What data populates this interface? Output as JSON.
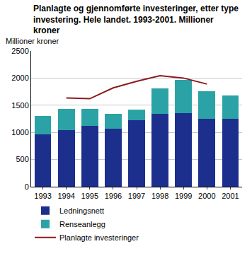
{
  "chart_data": {
    "type": "bar",
    "title": "Planlagte og gjennomførte investeringer, etter type investering. Hele landet. 1993-2001. Millioner kroner",
    "y_label": "Millioner kroner",
    "categories": [
      "1993",
      "1994",
      "1995",
      "1996",
      "1997",
      "1998",
      "1999",
      "2000",
      "2001"
    ],
    "stacked": true,
    "series": [
      {
        "name": "Ledningsnett",
        "type": "bar",
        "color": "#1c2f8c",
        "values": [
          970,
          1045,
          1120,
          1065,
          1230,
          1340,
          1360,
          1255,
          1245
        ]
      },
      {
        "name": "Renseanlegg",
        "type": "bar",
        "color": "#2ba3a6",
        "values": [
          335,
          390,
          310,
          280,
          195,
          470,
          600,
          500,
          440
        ]
      },
      {
        "name": "Planlagte investeringer",
        "type": "line",
        "color": "#8c1c1c",
        "values": [
          null,
          1635,
          1620,
          1820,
          1940,
          2045,
          2000,
          1890,
          null
        ]
      }
    ],
    "ylim": [
      0,
      2500
    ],
    "yticks": [
      0,
      500,
      1000,
      1500,
      2000,
      2500
    ],
    "grid": true,
    "legend": "bottom"
  }
}
